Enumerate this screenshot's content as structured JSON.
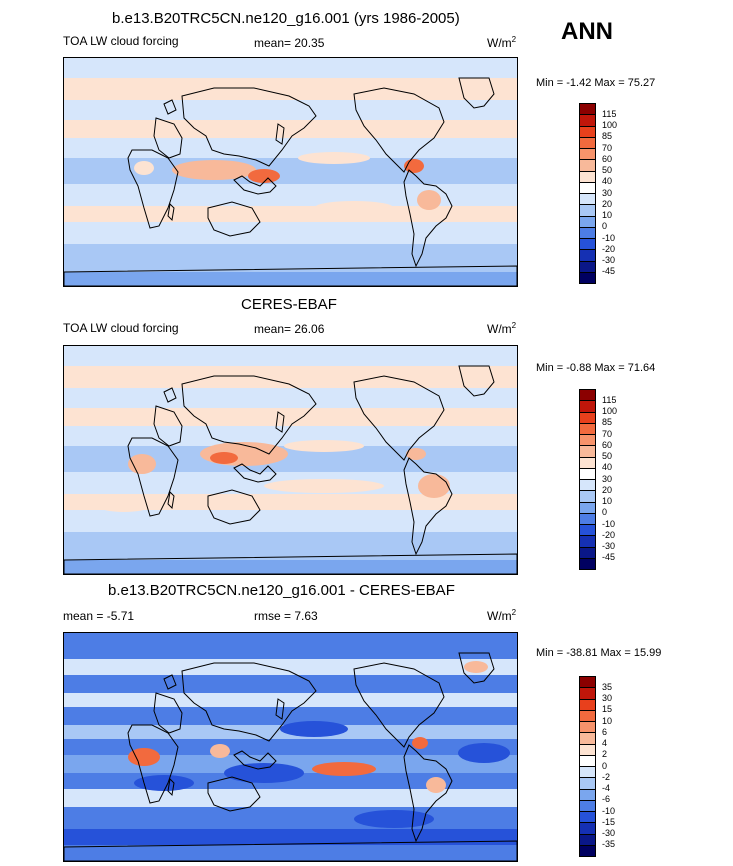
{
  "season": "ANN",
  "panels": [
    {
      "title": "b.e13.B20TRC5CN.ne120_g16.001 (yrs 1986-2005)",
      "left_label": "TOA LW cloud forcing",
      "center_label": "mean=  20.35",
      "units": "W/m",
      "units_sup": "2",
      "minmax": "Min =  -1.42 Max =  75.27"
    },
    {
      "title": "CERES-EBAF",
      "left_label": "TOA LW cloud forcing",
      "center_label": "mean=  26.06",
      "units": "W/m",
      "units_sup": "2",
      "minmax": "Min =  -0.88 Max =  71.64"
    },
    {
      "title": "b.e13.B20TRC5CN.ne120_g16.001 - CERES-EBAF",
      "left_label": "mean =  -5.71",
      "center_label": "rmse =   7.63",
      "units": "W/m",
      "units_sup": "2",
      "minmax": "Min = -38.81 Max =  15.99"
    }
  ],
  "chart_data": [
    {
      "type": "heatmap",
      "title": "b.e13.B20TRC5CN.ne120_g16.001 (yrs 1986-2005)",
      "variable": "TOA LW cloud forcing",
      "units": "W/m2",
      "mean": 20.35,
      "min": -1.42,
      "max": 75.27,
      "colorbar_levels": [
        "115",
        "100",
        "85",
        "70",
        "60",
        "50",
        "40",
        "30",
        "20",
        "10",
        "0",
        "-10",
        "-20",
        "-30",
        "-45"
      ],
      "colorbar_colors": [
        "#8b0000",
        "#c0160a",
        "#e8401c",
        "#f26a3e",
        "#f7936b",
        "#f8b99a",
        "#fde3d2",
        "#ffffff",
        "#d6e6fb",
        "#a9c8f5",
        "#7aa6ee",
        "#4d7de5",
        "#2652d9",
        "#1530b3",
        "#0a1788",
        "#000060"
      ]
    },
    {
      "type": "heatmap",
      "title": "CERES-EBAF",
      "variable": "TOA LW cloud forcing",
      "units": "W/m2",
      "mean": 26.06,
      "min": -0.88,
      "max": 71.64,
      "colorbar_levels": [
        "115",
        "100",
        "85",
        "70",
        "60",
        "50",
        "40",
        "30",
        "20",
        "10",
        "0",
        "-10",
        "-20",
        "-30",
        "-45"
      ],
      "colorbar_colors": [
        "#8b0000",
        "#c0160a",
        "#e8401c",
        "#f26a3e",
        "#f7936b",
        "#f8b99a",
        "#fde3d2",
        "#ffffff",
        "#d6e6fb",
        "#a9c8f5",
        "#7aa6ee",
        "#4d7de5",
        "#2652d9",
        "#1530b3",
        "#0a1788",
        "#000060"
      ]
    },
    {
      "type": "heatmap",
      "title": "b.e13.B20TRC5CN.ne120_g16.001 - CERES-EBAF",
      "units": "W/m2",
      "mean": -5.71,
      "rmse": 7.63,
      "min": -38.81,
      "max": 15.99,
      "colorbar_levels": [
        "35",
        "30",
        "15",
        "10",
        "6",
        "4",
        "2",
        "0",
        "-2",
        "-4",
        "-6",
        "-10",
        "-15",
        "-30",
        "-35"
      ],
      "colorbar_colors": [
        "#8b0000",
        "#c0160a",
        "#e8401c",
        "#f26a3e",
        "#f7936b",
        "#f8b99a",
        "#fde3d2",
        "#ffffff",
        "#d6e6fb",
        "#a9c8f5",
        "#7aa6ee",
        "#4d7de5",
        "#2652d9",
        "#1530b3",
        "#0a1788",
        "#000060"
      ]
    }
  ],
  "map_colors": {
    "ocean_base": "#a9c8f5",
    "ocean_light": "#d6e6fb",
    "warm_1": "#fde3d2",
    "warm_2": "#f8b99a",
    "warm_3": "#f26a3e",
    "cool_1": "#7aa6ee",
    "cool_2": "#4d7de5",
    "cool_3": "#2652d9",
    "coast": "#000000"
  }
}
